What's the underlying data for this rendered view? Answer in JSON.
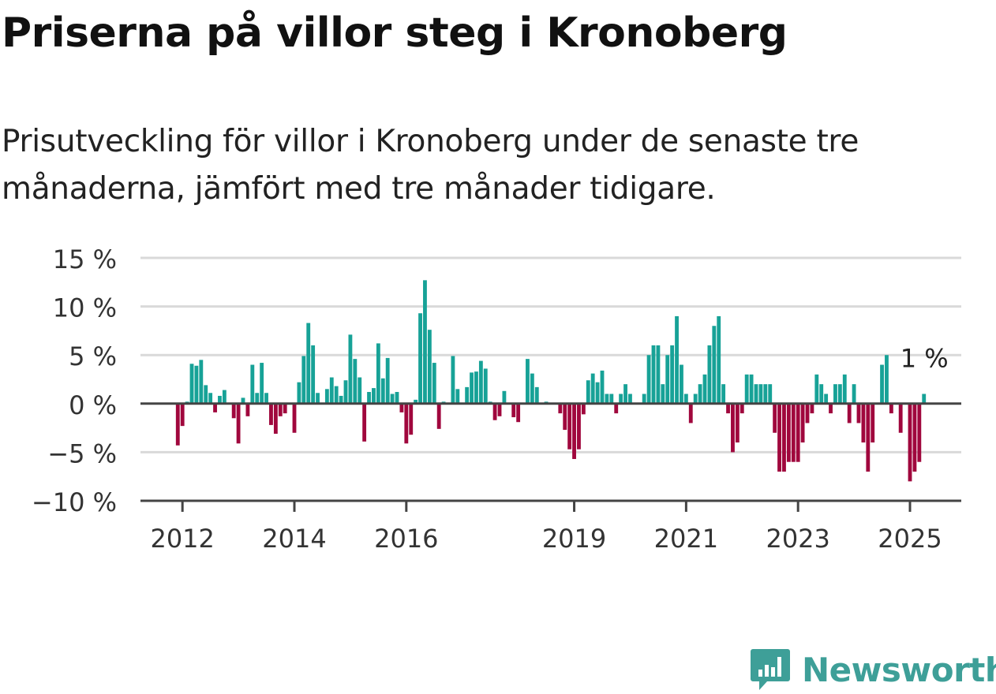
{
  "title": "Priserna på villor steg i Kronoberg",
  "subtitle": "Prisutveckling för villor i Kronoberg under de senaste tre månaderna, jämfört med tre månader tidigare.",
  "brand": {
    "name": "Newsworthy",
    "icon": "newsworthy-logo-icon"
  },
  "colors": {
    "positive": "#17a297",
    "negative": "#a0073d",
    "grid": "#d9d9d9",
    "axis": "#444444",
    "brand": "#3e9f98"
  },
  "chart_data": {
    "type": "bar",
    "ylim": [
      -10,
      15
    ],
    "yticks": [
      -10,
      -5,
      0,
      5,
      10,
      15
    ],
    "ytick_labels": [
      "−10 %",
      "−5 %",
      "0 %",
      "5 %",
      "10 %",
      "15 %"
    ],
    "x_range": [
      "2011-04",
      "2025-12"
    ],
    "xticks": [
      "2012",
      "2014",
      "2016",
      "2019",
      "2021",
      "2023",
      "2025"
    ],
    "grid": true,
    "last_label": "1 %",
    "series": [
      {
        "values": [
          -4.3,
          -2.3,
          0.2,
          4.1,
          3.9,
          4.5,
          1.9,
          1.1,
          -0.9,
          0.8,
          1.4,
          0.1,
          -1.5,
          -4.1,
          0.6,
          -1.3,
          4.0,
          1.1,
          4.2,
          1.1,
          -2.2,
          -3.1,
          -1.3,
          -1.0,
          0.1,
          -3.0,
          2.2,
          4.9,
          8.3,
          6.0,
          1.1,
          0.1,
          1.5,
          2.7,
          1.8,
          0.8,
          2.4,
          7.1,
          4.6,
          2.7,
          -3.9,
          1.2,
          1.6,
          6.2,
          2.6,
          4.7,
          1.0,
          1.2,
          -0.9,
          -4.1,
          -3.2,
          0.4,
          9.3,
          12.7,
          7.6,
          4.2,
          -2.6,
          0.2,
          0.1,
          4.9,
          1.5,
          0.1,
          1.7,
          3.2,
          3.3,
          4.4,
          3.6,
          0.2,
          -1.7,
          -1.3,
          1.3,
          0.1,
          -1.4,
          -1.9,
          0.1,
          4.6,
          3.1,
          1.7,
          0.1,
          0.2,
          0.1,
          0.1,
          -1.0,
          -2.7,
          -4.7,
          -5.7,
          -4.7,
          -1.1,
          2.4,
          3.1,
          2.2,
          3.4,
          1.0,
          1.0,
          -1.0,
          1.0,
          2.0,
          1.0,
          0.1,
          0.1,
          1.0,
          5.0,
          6.0,
          6.0,
          2.0,
          5.0,
          6.0,
          9.0,
          4.0,
          1.0,
          -2.0,
          1.0,
          2.0,
          3.0,
          6.0,
          8.0,
          9.0,
          2.0,
          -1.0,
          -5.0,
          -4.0,
          -1.0,
          3.0,
          3.0,
          2.0,
          2.0,
          2.0,
          2.0,
          -3.0,
          -7.0,
          -7.0,
          -6.0,
          -6.0,
          -6.0,
          -4.0,
          -2.0,
          -1.0,
          3.0,
          2.0,
          1.0,
          -1.0,
          2.0,
          2.0,
          3.0,
          -2.0,
          2.0,
          -2.0,
          -4.0,
          -7.0,
          -4.0,
          0.1,
          4.0,
          5.0,
          -1.0,
          0.1,
          -3.0,
          0.1,
          -8.0,
          -7.0,
          -6.0,
          1.0
        ]
      }
    ]
  }
}
